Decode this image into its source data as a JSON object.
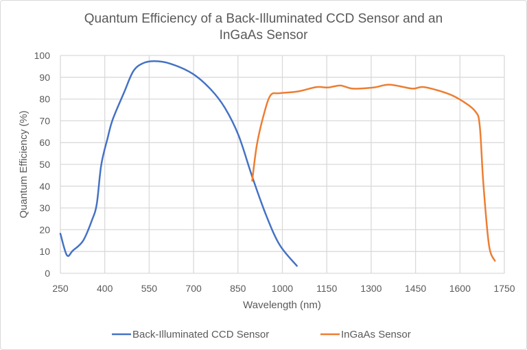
{
  "chart_data": {
    "type": "line",
    "title_lines": [
      "Quantum Efficiency of a Back-Illuminated CCD Sensor and an",
      "InGaAs Sensor"
    ],
    "xlabel": "Wavelength (nm)",
    "ylabel": "Quantum Efficiency (%)",
    "xlim": [
      250,
      1750
    ],
    "ylim": [
      0,
      100
    ],
    "xticks": [
      250,
      400,
      550,
      700,
      850,
      1000,
      1150,
      1300,
      1450,
      1600,
      1750
    ],
    "yticks": [
      0,
      10,
      20,
      30,
      40,
      50,
      60,
      70,
      80,
      90,
      100
    ],
    "grid": true,
    "legend_position": "bottom",
    "series": [
      {
        "name": "Back-Illuminated CCD Sensor",
        "color": "#4472C4",
        "x": [
          250,
          272,
          292,
          327,
          357,
          373,
          388,
          410,
          427,
          466,
          496,
          527,
          566,
          620,
          697,
          759,
          806,
          852,
          898,
          945,
          991,
          1049
        ],
        "y": [
          18.2,
          8.3,
          10.4,
          15,
          24.5,
          31.9,
          49.7,
          62.3,
          70.7,
          83.3,
          92.7,
          96.3,
          97.4,
          96.3,
          91.6,
          84.3,
          75.9,
          63.3,
          44.4,
          26.7,
          13,
          3.4
        ]
      },
      {
        "name": "InGaAs Sensor",
        "color": "#ED7D31",
        "x": [
          898,
          914,
          937,
          960,
          991,
          1053,
          1115,
          1154,
          1196,
          1238,
          1308,
          1362,
          1439,
          1478,
          1555,
          1602,
          1652,
          1667,
          1679,
          1698,
          1718
        ],
        "y": [
          42.5,
          59.1,
          72.7,
          81.7,
          82.7,
          83.5,
          85.5,
          85.3,
          86.2,
          84.8,
          85.3,
          86.6,
          84.8,
          85.5,
          82.7,
          79.6,
          74.3,
          67.5,
          41.3,
          13,
          5.7
        ]
      }
    ]
  }
}
